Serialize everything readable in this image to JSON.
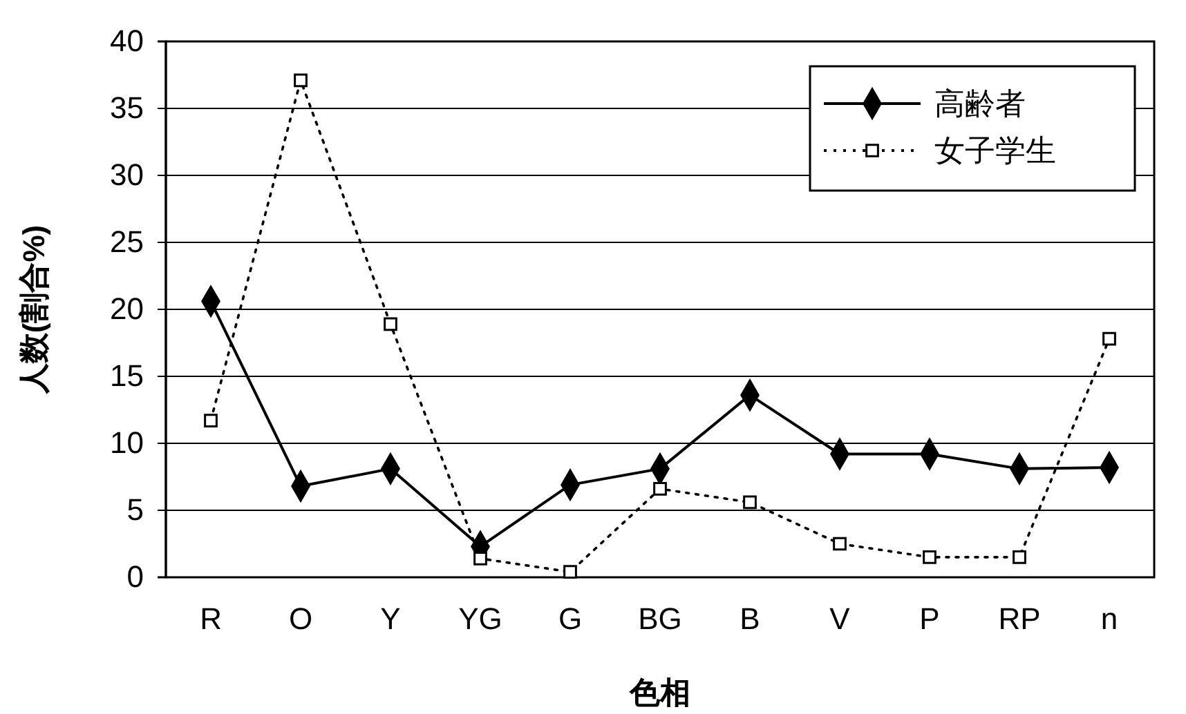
{
  "chart_data": {
    "type": "line",
    "xlabel": "色相",
    "ylabel": "人数(割合%)",
    "categories": [
      "R",
      "O",
      "Y",
      "YG",
      "G",
      "BG",
      "B",
      "V",
      "P",
      "RP",
      "n"
    ],
    "ylim": [
      0,
      40
    ],
    "yticks": [
      0,
      5,
      10,
      15,
      20,
      25,
      30,
      35,
      40
    ],
    "grid": "y",
    "legend": "top right",
    "series": [
      {
        "name": "高齢者",
        "color": "#000000",
        "marker": "diamond",
        "line_style": "solid",
        "values": [
          20.6,
          6.8,
          8.1,
          2.3,
          6.9,
          8.1,
          13.6,
          9.2,
          9.2,
          8.1,
          8.2
        ]
      },
      {
        "name": "女子学生",
        "color": "#000000",
        "marker": "square",
        "line_style": "dotted",
        "values": [
          11.7,
          37.1,
          18.9,
          1.4,
          0.4,
          6.6,
          5.6,
          2.5,
          1.5,
          1.5,
          17.8
        ]
      }
    ]
  }
}
